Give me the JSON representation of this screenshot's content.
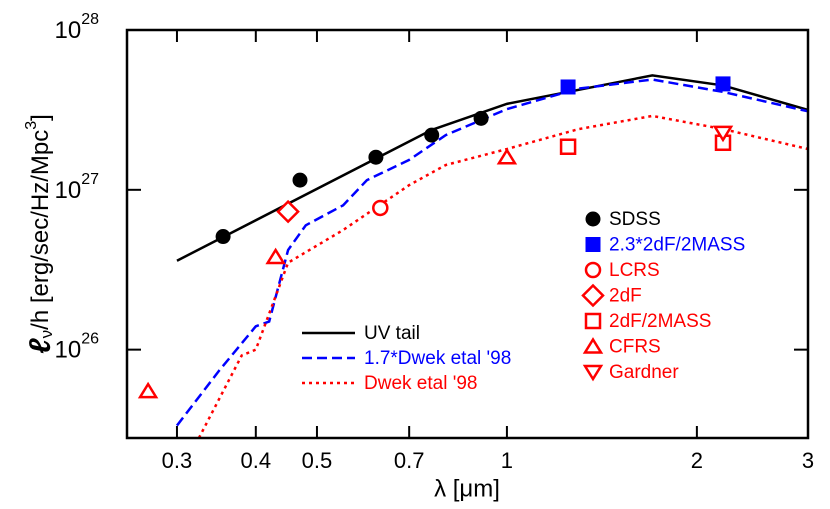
{
  "chart_data": {
    "type": "line",
    "x_label": "λ [μm]",
    "y_label": [
      "ℓ",
      "ν",
      "/h [erg/sec/Hz/Mpc",
      "3",
      "]"
    ],
    "xlog": true,
    "ylog": true,
    "xlim": [
      0.25,
      3
    ],
    "ylim": [
      2.8e+25,
      1e+28
    ],
    "xticks": [
      0.3,
      0.4,
      0.5,
      0.7,
      1,
      2,
      3
    ],
    "yticks": [
      {
        "value": 1e+26,
        "label": "10",
        "exponent": "26"
      },
      {
        "value": 1e+27,
        "label": "10",
        "exponent": "27"
      },
      {
        "value": 1e+28,
        "label": "10",
        "exponent": "28"
      }
    ],
    "series": [
      {
        "name": "UV tail",
        "type": "line",
        "dash": "solid",
        "color": "#000000",
        "x": [
          0.3,
          0.76,
          1.0,
          1.7,
          2.2,
          3
        ],
        "values": [
          3.6e+26,
          2.37e+27,
          3.45e+27,
          5.2e+27,
          4.5e+27,
          3.16e+27
        ]
      },
      {
        "name": "1.7*Dwek etal '98",
        "type": "line",
        "dash": "dashed",
        "color": "#0000ff",
        "x": [
          0.3,
          0.35,
          0.4,
          0.42,
          0.45,
          0.48,
          0.55,
          0.6,
          0.7,
          0.8,
          1.0,
          1.3,
          1.7,
          2.2,
          3
        ],
        "values": [
          3.35e+25,
          7.4e+25,
          1.4e+26,
          1.5e+26,
          4.2e+26,
          6e+26,
          8e+26,
          1.15e+27,
          1.54e+27,
          2.2e+27,
          3.2e+27,
          4.3e+27,
          4.9e+27,
          4.1e+27,
          3.1e+27
        ]
      },
      {
        "name": "Dwek etal '98",
        "type": "line",
        "dash": "dotted",
        "color": "#ff0000",
        "x": [
          0.325,
          0.38,
          0.4,
          0.45,
          0.55,
          0.7,
          0.8,
          1.0,
          1.3,
          1.7,
          2.2,
          3
        ],
        "values": [
          2.8e+25,
          9.2e+25,
          1e+26,
          3.5e+26,
          5.6e+26,
          1.07e+27,
          1.43e+27,
          1.8e+27,
          2.4e+27,
          2.9e+27,
          2.4e+27,
          1.8e+27
        ]
      },
      {
        "name": "SDSS",
        "type": "scatter",
        "marker": "circle",
        "color": "#000000",
        "x": [
          0.355,
          0.47,
          0.62,
          0.76,
          0.91
        ],
        "values": [
          5.1e+26,
          1.15e+27,
          1.6e+27,
          2.2e+27,
          2.8e+27
        ]
      },
      {
        "name": "2.3*2dF/2MASS",
        "type": "scatter",
        "marker": "square",
        "color": "#0000ff",
        "x": [
          1.25,
          2.2
        ],
        "values": [
          4.4e+27,
          4.6e+27
        ]
      },
      {
        "name": "LCRS",
        "type": "scatter",
        "marker": "circle-open",
        "color": "#ff0000",
        "x": [
          0.63
        ],
        "values": [
          7.7e+26
        ]
      },
      {
        "name": "2dF",
        "type": "scatter",
        "marker": "diamond-open",
        "color": "#ff0000",
        "x": [
          0.45
        ],
        "values": [
          7.3e+26
        ]
      },
      {
        "name": "2dF/2MASS",
        "type": "scatter",
        "marker": "square-open",
        "color": "#ff0000",
        "x": [
          1.25,
          2.2
        ],
        "values": [
          1.86e+27,
          1.97e+27
        ]
      },
      {
        "name": "CFRS",
        "type": "scatter",
        "marker": "triangle-open",
        "color": "#ff0000",
        "x": [
          0.27,
          0.43,
          1.0
        ],
        "values": [
          5.5e+25,
          3.8e+26,
          1.6e+27
        ]
      },
      {
        "name": "Gardner",
        "type": "scatter",
        "marker": "triangle-down-open",
        "color": "#ff0000",
        "x": [
          2.2
        ],
        "values": [
          2.27e+27
        ]
      }
    ]
  }
}
